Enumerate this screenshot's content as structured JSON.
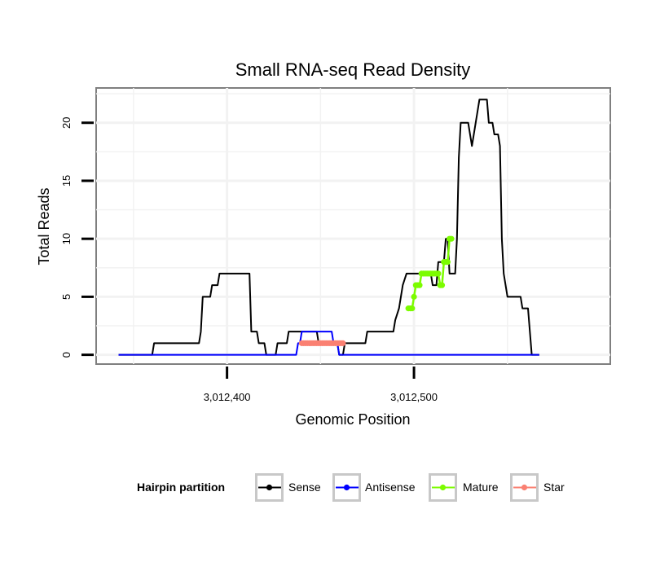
{
  "chart_data": {
    "type": "line",
    "title": "Small RNA-seq Read Density",
    "xlabel": "Genomic Position",
    "ylabel": "Total Reads",
    "xlim": [
      3012330,
      3012605
    ],
    "ylim": [
      -0.8,
      23
    ],
    "x_ticks": [
      {
        "value": 3012400,
        "label": "3,012,400"
      },
      {
        "value": 3012500,
        "label": "3,012,500"
      }
    ],
    "y_ticks": [
      {
        "value": 0,
        "label": "0"
      },
      {
        "value": 5,
        "label": "5"
      },
      {
        "value": 10,
        "label": "10"
      },
      {
        "value": 15,
        "label": "15"
      },
      {
        "value": 20,
        "label": "20"
      }
    ],
    "grid": true,
    "legend": {
      "title": "Hairpin partition",
      "position": "bottom",
      "entries": [
        {
          "name": "Sense",
          "color": "#000000"
        },
        {
          "name": "Antisense",
          "color": "#0000ff"
        },
        {
          "name": "Mature",
          "color": "#7cfc00"
        },
        {
          "name": "Star",
          "color": "#fa8072"
        }
      ]
    },
    "series": [
      {
        "name": "Sense",
        "color": "#000000",
        "style": "line",
        "points": [
          [
            3012342,
            0
          ],
          [
            3012360,
            0
          ],
          [
            3012361,
            1
          ],
          [
            3012385,
            1
          ],
          [
            3012386,
            2
          ],
          [
            3012387,
            5
          ],
          [
            3012391,
            5
          ],
          [
            3012392,
            6
          ],
          [
            3012395,
            6
          ],
          [
            3012396,
            7
          ],
          [
            3012412,
            7
          ],
          [
            3012413,
            2
          ],
          [
            3012416,
            2
          ],
          [
            3012417,
            1
          ],
          [
            3012420,
            1
          ],
          [
            3012421,
            0
          ],
          [
            3012426,
            0
          ],
          [
            3012427,
            1
          ],
          [
            3012432,
            1
          ],
          [
            3012433,
            2
          ],
          [
            3012448,
            2
          ],
          [
            3012449,
            1
          ],
          [
            3012459,
            1
          ],
          [
            3012460,
            0
          ],
          [
            3012462,
            0
          ],
          [
            3012463,
            1
          ],
          [
            3012474,
            1
          ],
          [
            3012475,
            2
          ],
          [
            3012489,
            2
          ],
          [
            3012490,
            3
          ],
          [
            3012492,
            4
          ],
          [
            3012493,
            5
          ],
          [
            3012494,
            6
          ],
          [
            3012496,
            7
          ],
          [
            3012509,
            7
          ],
          [
            3012510,
            6
          ],
          [
            3012512,
            6
          ],
          [
            3012513,
            8
          ],
          [
            3012516,
            8
          ],
          [
            3012517,
            10
          ],
          [
            3012518,
            10
          ],
          [
            3012519,
            7
          ],
          [
            3012522,
            7
          ],
          [
            3012523,
            10
          ],
          [
            3012524,
            17
          ],
          [
            3012525,
            20
          ],
          [
            3012529,
            20
          ],
          [
            3012530,
            19
          ],
          [
            3012531,
            18
          ],
          [
            3012532,
            19
          ],
          [
            3012533,
            20
          ],
          [
            3012534,
            21
          ],
          [
            3012535,
            22
          ],
          [
            3012539,
            22
          ],
          [
            3012540,
            20
          ],
          [
            3012542,
            20
          ],
          [
            3012543,
            19
          ],
          [
            3012545,
            19
          ],
          [
            3012546,
            18
          ],
          [
            3012547,
            10
          ],
          [
            3012548,
            7
          ],
          [
            3012549,
            6
          ],
          [
            3012550,
            5
          ],
          [
            3012557,
            5
          ],
          [
            3012558,
            4
          ],
          [
            3012561,
            4
          ],
          [
            3012562,
            2
          ],
          [
            3012563,
            0
          ],
          [
            3012567,
            0
          ]
        ]
      },
      {
        "name": "Antisense",
        "color": "#0000ff",
        "style": "line",
        "points": [
          [
            3012342,
            0
          ],
          [
            3012437,
            0
          ],
          [
            3012438,
            1
          ],
          [
            3012439,
            1
          ],
          [
            3012440,
            2
          ],
          [
            3012456,
            2
          ],
          [
            3012457,
            1
          ],
          [
            3012459,
            1
          ],
          [
            3012460,
            0
          ],
          [
            3012567,
            0
          ]
        ]
      },
      {
        "name": "Mature",
        "color": "#7cfc00",
        "style": "dotted",
        "points": [
          [
            3012497,
            4
          ],
          [
            3012498,
            4
          ],
          [
            3012499,
            4
          ],
          [
            3012500,
            5
          ],
          [
            3012501,
            6
          ],
          [
            3012502,
            6
          ],
          [
            3012503,
            6
          ],
          [
            3012504,
            7
          ],
          [
            3012505,
            7
          ],
          [
            3012506,
            7
          ],
          [
            3012507,
            7
          ],
          [
            3012508,
            7
          ],
          [
            3012509,
            7
          ],
          [
            3012510,
            7
          ],
          [
            3012511,
            7
          ],
          [
            3012512,
            7
          ],
          [
            3012513,
            7
          ],
          [
            3012514,
            6
          ],
          [
            3012515,
            6
          ],
          [
            3012516,
            8
          ],
          [
            3012517,
            8
          ],
          [
            3012518,
            8
          ],
          [
            3012519,
            10
          ],
          [
            3012520,
            10
          ]
        ]
      },
      {
        "name": "Star",
        "color": "#fa8072",
        "style": "dotted",
        "points": [
          [
            3012440,
            1
          ],
          [
            3012441,
            1
          ],
          [
            3012442,
            1
          ],
          [
            3012443,
            1
          ],
          [
            3012444,
            1
          ],
          [
            3012445,
            1
          ],
          [
            3012446,
            1
          ],
          [
            3012447,
            1
          ],
          [
            3012448,
            1
          ],
          [
            3012449,
            1
          ],
          [
            3012450,
            1
          ],
          [
            3012451,
            1
          ],
          [
            3012452,
            1
          ],
          [
            3012453,
            1
          ],
          [
            3012454,
            1
          ],
          [
            3012455,
            1
          ],
          [
            3012456,
            1
          ],
          [
            3012457,
            1
          ],
          [
            3012458,
            1
          ],
          [
            3012459,
            1
          ],
          [
            3012460,
            1
          ],
          [
            3012461,
            1
          ],
          [
            3012462,
            1
          ]
        ]
      }
    ]
  }
}
